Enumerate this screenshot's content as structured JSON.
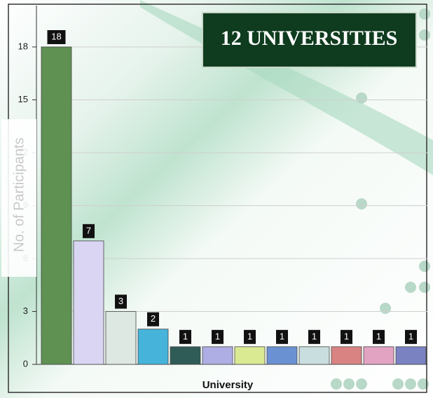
{
  "chart_data": {
    "type": "bar",
    "title": "12 UNIVERSITIES",
    "y_label": "No. of Participants",
    "x_label": "University",
    "categories": [
      null,
      null,
      null,
      null,
      null,
      null,
      null,
      null,
      null,
      null,
      null,
      null
    ],
    "values": [
      18,
      7,
      3,
      2,
      1,
      1,
      1,
      1,
      1,
      1,
      1,
      1
    ],
    "colors": [
      "#5e9152",
      "#d9d5f2",
      "#dde8e2",
      "#46b3da",
      "#2f5c57",
      "#aeaee4",
      "#d9ea93",
      "#6a92d2",
      "#c9dede",
      "#d98383",
      "#e2a3c3",
      "#7a82c2"
    ],
    "ylim": [
      0,
      18
    ],
    "yticks": [
      0,
      3,
      6,
      9,
      12,
      15,
      18
    ],
    "grid": true
  }
}
